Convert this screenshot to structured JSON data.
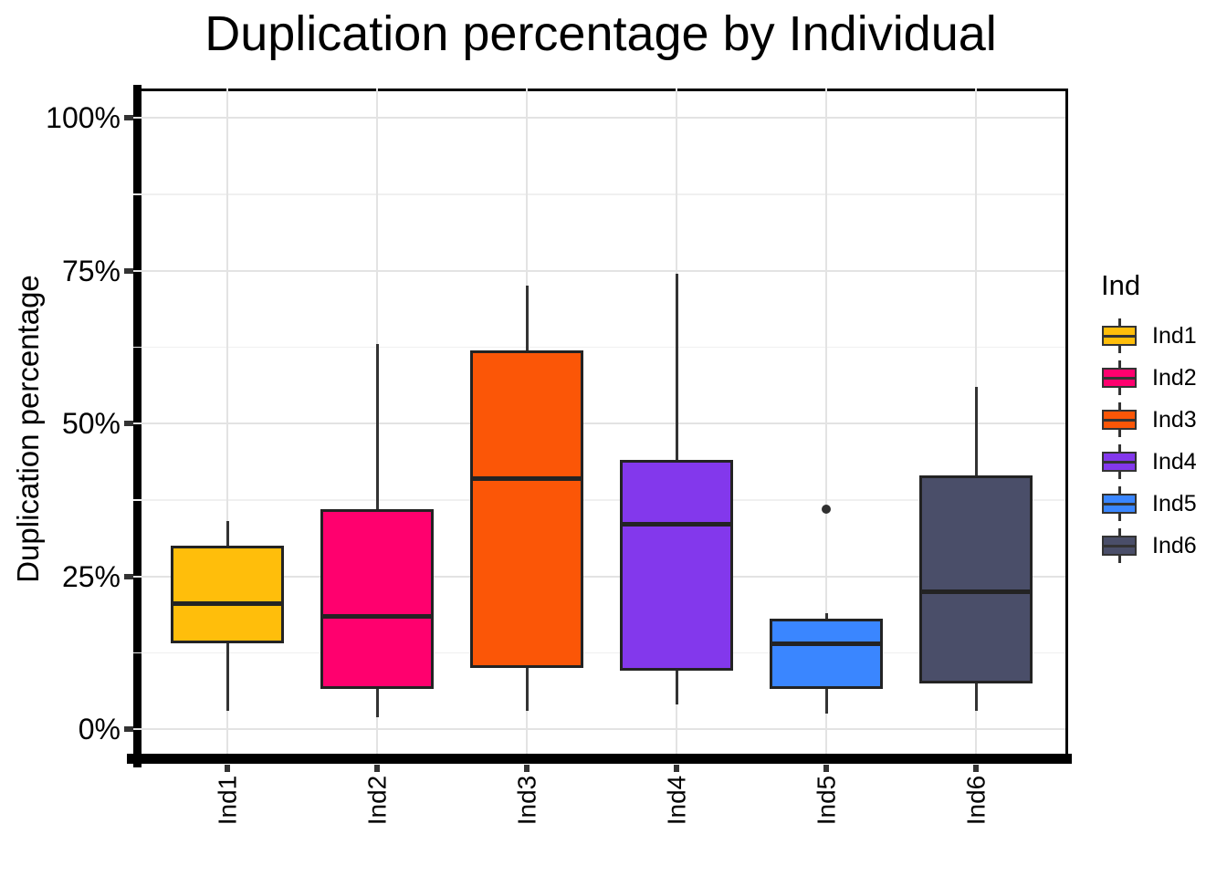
{
  "title": "Duplication percentage by Individual",
  "y_axis": {
    "label": "Duplication percentage",
    "ticks": [
      {
        "value": 0,
        "label": "0%"
      },
      {
        "value": 25,
        "label": "25%"
      },
      {
        "value": 50,
        "label": "50%"
      },
      {
        "value": 75,
        "label": "75%"
      },
      {
        "value": 100,
        "label": "100%"
      }
    ],
    "minor_ticks": [
      12.5,
      37.5,
      62.5,
      87.5
    ],
    "range": [
      0,
      100
    ]
  },
  "x_axis": {
    "labels": [
      "Ind1",
      "Ind2",
      "Ind3",
      "Ind4",
      "Ind5",
      "Ind6"
    ]
  },
  "legend": {
    "title": "Ind",
    "entries": [
      {
        "label": "Ind1",
        "color": "#FFBE0B"
      },
      {
        "label": "Ind2",
        "color": "#FF006E"
      },
      {
        "label": "Ind3",
        "color": "#FB5607"
      },
      {
        "label": "Ind4",
        "color": "#8338EC"
      },
      {
        "label": "Ind5",
        "color": "#3A86FF"
      },
      {
        "label": "Ind6",
        "color": "#4A4E69"
      }
    ]
  },
  "chart_data": {
    "type": "boxplot",
    "title": "Duplication percentage by Individual",
    "xlabel": "",
    "ylabel": "Duplication percentage",
    "ylim": [
      0,
      100
    ],
    "y_unit": "percent",
    "categories": [
      "Ind1",
      "Ind2",
      "Ind3",
      "Ind4",
      "Ind5",
      "Ind6"
    ],
    "series": [
      {
        "name": "Ind1",
        "color": "#FFBE0B",
        "whisker_low": 3,
        "q1": 14,
        "median": 20.5,
        "q3": 30,
        "whisker_high": 34,
        "outliers": []
      },
      {
        "name": "Ind2",
        "color": "#FF006E",
        "whisker_low": 2,
        "q1": 6.5,
        "median": 18.5,
        "q3": 36,
        "whisker_high": 63,
        "outliers": []
      },
      {
        "name": "Ind3",
        "color": "#FB5607",
        "whisker_low": 3,
        "q1": 10,
        "median": 41,
        "q3": 62,
        "whisker_high": 72.5,
        "outliers": []
      },
      {
        "name": "Ind4",
        "color": "#8338EC",
        "whisker_low": 4,
        "q1": 9.5,
        "median": 33.5,
        "q3": 44,
        "whisker_high": 74.5,
        "outliers": []
      },
      {
        "name": "Ind5",
        "color": "#3A86FF",
        "whisker_low": 2.5,
        "q1": 6.5,
        "median": 14,
        "q3": 18,
        "whisker_high": 19,
        "outliers": [
          36
        ]
      },
      {
        "name": "Ind6",
        "color": "#4A4E69",
        "whisker_low": 3,
        "q1": 7.5,
        "median": 22.5,
        "q3": 41.5,
        "whisker_high": 56,
        "outliers": []
      }
    ],
    "gridlines": {
      "major_y": [
        0,
        25,
        50,
        75,
        100
      ],
      "minor_y": [
        12.5,
        37.5,
        62.5,
        87.5
      ],
      "vertical_major_at_categories": true
    },
    "legend_position": "right",
    "legend_title": "Ind"
  },
  "colors": {
    "background": "#ffffff",
    "axis_line": "#000000",
    "box_border": "#232323",
    "whisker": "#333333",
    "outlier": "#2f2f2f",
    "gridline_major": "#e3e3e3",
    "gridline_minor": "#f0f0f0",
    "tick_mark": "#333333"
  }
}
